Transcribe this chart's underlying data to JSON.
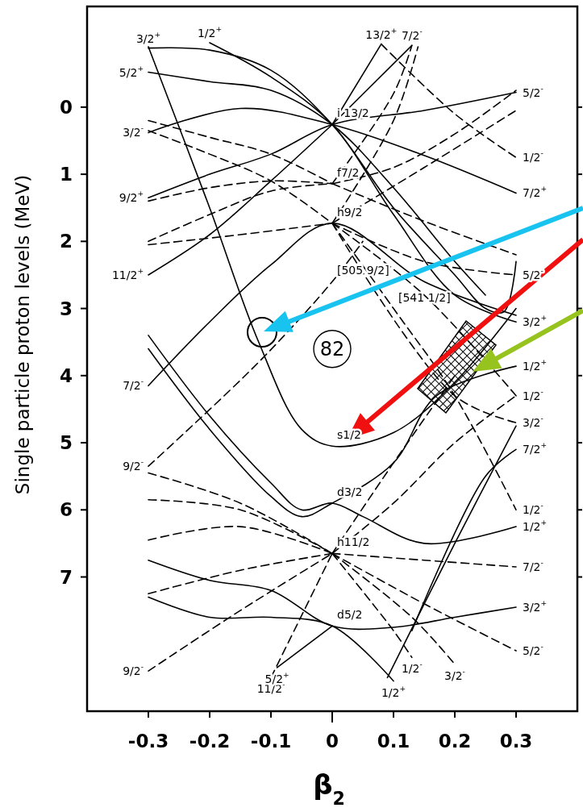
{
  "chart_data": {
    "type": "line",
    "xlabel": "β$_{2}$",
    "ylabel": "Single particle proton levels (MeV)",
    "xlim": [
      -0.4,
      0.4
    ],
    "ylim": [
      9,
      -1.5
    ],
    "xticks": [
      -0.3,
      -0.2,
      -0.1,
      0,
      0.1,
      0.2,
      0.3
    ],
    "yticks": [
      0,
      1,
      2,
      3,
      4,
      5,
      6,
      7
    ],
    "series": [
      {
        "color": "#000000",
        "line_style": "solid",
        "x": [
          -0.3,
          -0.2,
          -0.1,
          0,
          0.1,
          0.2,
          0.25,
          0.28,
          0.3
        ],
        "values": [
          -0.88,
          -0.85,
          -0.55,
          0.26,
          1.5,
          2.5,
          3.0,
          3.05,
          2.3
        ]
      },
      {
        "color": "#000000",
        "line_style": "solid",
        "x": [
          -0.2,
          -0.1,
          0,
          0.1,
          0.2,
          0.3
        ],
        "values": [
          -0.96,
          -0.45,
          0.26,
          1.6,
          2.8,
          3.2
        ]
      },
      {
        "color": "#000000",
        "line_style": "solid",
        "x": [
          -0.3,
          -0.2,
          -0.1,
          0,
          0.1,
          0.2,
          0.25
        ],
        "values": [
          -0.52,
          -0.38,
          -0.25,
          0.26,
          1.2,
          2.3,
          2.8
        ]
      },
      {
        "color": "#000000",
        "line_style": "solid",
        "x": [
          -0.3,
          -0.15,
          0,
          0.15,
          0.3
        ],
        "values": [
          0.38,
          0.02,
          0.26,
          0.72,
          1.28
        ]
      },
      {
        "color": "#000000",
        "line_style": "solid",
        "x": [
          -0.3,
          -0.2,
          -0.1,
          0,
          0.15,
          0.3
        ],
        "values": [
          1.35,
          1.0,
          0.7,
          0.26,
          0.05,
          -0.22
        ]
      },
      {
        "color": "#000000",
        "line_style": "solid",
        "x": [
          0,
          0.08
        ],
        "values": [
          0.26,
          -0.94
        ]
      },
      {
        "color": "#000000",
        "line_style": "solid",
        "x": [
          0,
          0.13
        ],
        "values": [
          0.26,
          -0.92
        ]
      },
      {
        "color": "#000000",
        "line_style": "solid",
        "x": [
          -0.3,
          -0.2,
          -0.1,
          0
        ],
        "values": [
          2.5,
          1.9,
          1.1,
          0.26
        ]
      },
      {
        "color": "#000000",
        "line_style": "solid",
        "x": [
          -0.3,
          -0.2,
          -0.12,
          -0.05,
          0,
          0.1,
          0.2,
          0.3
        ],
        "values": [
          -0.9,
          1.5,
          3.5,
          4.8,
          5.05,
          4.85,
          4.1,
          3.0
        ]
      },
      {
        "color": "#000000",
        "line_style": "solid",
        "x": [
          -0.3,
          -0.2,
          -0.1,
          0,
          0.15,
          0.3
        ],
        "values": [
          4.15,
          3.2,
          2.35,
          1.73,
          2.6,
          3.1
        ]
      },
      {
        "color": "#000000",
        "line_style": "solid",
        "x": [
          -0.3,
          -0.2,
          -0.1,
          -0.05,
          0,
          0.05,
          0.15,
          0.3
        ],
        "values": [
          3.4,
          4.6,
          5.6,
          6.0,
          5.9,
          6.1,
          6.5,
          6.25
        ]
      },
      {
        "color": "#000000",
        "line_style": "solid",
        "x": [
          -0.3,
          -0.2,
          -0.1,
          -0.05,
          0,
          0.1,
          0.17,
          0.3
        ],
        "values": [
          3.6,
          4.8,
          5.8,
          6.1,
          5.9,
          5.3,
          4.3,
          3.86
        ]
      },
      {
        "color": "#000000",
        "line_style": "solid",
        "x": [
          -0.3,
          -0.2,
          -0.1,
          0,
          0.1,
          0.2,
          0.3
        ],
        "values": [
          6.75,
          7.05,
          7.2,
          7.73,
          7.75,
          7.6,
          7.45
        ]
      },
      {
        "color": "#000000",
        "line_style": "solid",
        "x": [
          -0.3,
          -0.2,
          -0.1,
          0,
          0.1
        ],
        "values": [
          7.3,
          7.6,
          7.6,
          7.73,
          8.55
        ]
      },
      {
        "color": "#000000",
        "line_style": "solid",
        "x": [
          -0.09,
          0
        ],
        "values": [
          8.35,
          7.73
        ]
      },
      {
        "color": "#000000",
        "line_style": "solid",
        "x": [
          0.09,
          0.2,
          0.3
        ],
        "values": [
          8.5,
          6.5,
          4.75
        ]
      },
      {
        "color": "#000000",
        "line_style": "solid",
        "x": [
          0.13,
          0.25,
          0.3
        ],
        "values": [
          7.8,
          5.5,
          5.1
        ]
      },
      {
        "color": "#000000",
        "line_style": "dashed",
        "x": [
          -0.3,
          -0.2,
          -0.1,
          0
        ],
        "values": [
          0.2,
          0.45,
          0.7,
          1.14
        ]
      },
      {
        "color": "#000000",
        "line_style": "dashed",
        "x": [
          -0.3,
          -0.2,
          -0.1,
          0
        ],
        "values": [
          0.35,
          0.7,
          1.1,
          1.73
        ]
      },
      {
        "color": "#000000",
        "line_style": "dashed",
        "x": [
          -0.3,
          -0.2,
          -0.1,
          0
        ],
        "values": [
          1.4,
          1.2,
          1.1,
          1.14
        ]
      },
      {
        "color": "#000000",
        "line_style": "dashed",
        "x": [
          -0.3,
          -0.2,
          -0.1,
          0
        ],
        "values": [
          2.0,
          1.6,
          1.25,
          1.14
        ]
      },
      {
        "color": "#000000",
        "line_style": "dashed",
        "x": [
          -0.3,
          -0.15,
          0
        ],
        "values": [
          2.05,
          1.9,
          1.73
        ]
      },
      {
        "color": "#000000",
        "line_style": "dashed",
        "x": [
          0,
          0.1,
          0.13
        ],
        "values": [
          1.14,
          -0.2,
          -0.92
        ]
      },
      {
        "color": "#000000",
        "line_style": "dashed",
        "x": [
          0,
          0.1,
          0.14
        ],
        "values": [
          1.73,
          0.2,
          -0.9
        ]
      },
      {
        "color": "#000000",
        "line_style": "dashed",
        "x": [
          0.08,
          0.2,
          0.3
        ],
        "values": [
          -0.94,
          0.1,
          0.75
        ]
      },
      {
        "color": "#000000",
        "line_style": "dashed",
        "x": [
          0,
          0.1,
          0.2,
          0.3
        ],
        "values": [
          1.14,
          0.9,
          0.4,
          -0.25
        ]
      },
      {
        "color": "#000000",
        "line_style": "dashed",
        "x": [
          0,
          0.15,
          0.3
        ],
        "values": [
          1.73,
          0.9,
          0.05
        ]
      },
      {
        "color": "#000000",
        "line_style": "dashed",
        "x": [
          0,
          0.15,
          0.3
        ],
        "values": [
          1.73,
          2.3,
          2.5
        ]
      },
      {
        "color": "#000000",
        "line_style": "dashed",
        "x": [
          0,
          0.15,
          0.3
        ],
        "values": [
          1.14,
          1.7,
          2.2
        ]
      },
      {
        "color": "#000000",
        "line_style": "dashed",
        "x": [
          -0.3,
          -0.12,
          0,
          0.05
        ],
        "values": [
          5.35,
          3.8,
          2.6,
          2.0
        ]
      },
      {
        "color": "#000000",
        "line_style": "dashed",
        "x": [
          0,
          0.1,
          0.2,
          0.3
        ],
        "values": [
          1.73,
          3.0,
          4.3,
          6.0
        ]
      },
      {
        "color": "#000000",
        "line_style": "dashed",
        "x": [
          0,
          0.15,
          0.3
        ],
        "values": [
          1.73,
          2.8,
          4.3
        ]
      },
      {
        "color": "#000000",
        "line_style": "dashed",
        "x": [
          0,
          0.2,
          0.3
        ],
        "values": [
          1.73,
          4.3,
          4.7
        ]
      },
      {
        "color": "#000000",
        "line_style": "dashed",
        "x": [
          -0.3,
          -0.15,
          0
        ],
        "values": [
          5.45,
          5.9,
          6.65
        ]
      },
      {
        "color": "#000000",
        "line_style": "dashed",
        "x": [
          -0.3,
          -0.15,
          0
        ],
        "values": [
          5.85,
          6.0,
          6.65
        ]
      },
      {
        "color": "#000000",
        "line_style": "dashed",
        "x": [
          -0.3,
          -0.15,
          0
        ],
        "values": [
          6.45,
          6.25,
          6.65
        ]
      },
      {
        "color": "#000000",
        "line_style": "dashed",
        "x": [
          -0.3,
          -0.15,
          0
        ],
        "values": [
          7.25,
          6.9,
          6.65
        ]
      },
      {
        "color": "#000000",
        "line_style": "dashed",
        "x": [
          -0.3,
          -0.15,
          0
        ],
        "values": [
          8.4,
          7.5,
          6.65
        ]
      },
      {
        "color": "#000000",
        "line_style": "dashed",
        "x": [
          -0.1,
          0
        ],
        "values": [
          8.5,
          6.65
        ]
      },
      {
        "color": "#000000",
        "line_style": "dashed",
        "x": [
          0,
          0.15,
          0.3
        ],
        "values": [
          6.65,
          6.75,
          6.85
        ]
      },
      {
        "color": "#000000",
        "line_style": "dashed",
        "x": [
          0,
          0.1,
          0.13
        ],
        "values": [
          6.65,
          7.8,
          8.2
        ]
      },
      {
        "color": "#000000",
        "line_style": "dashed",
        "x": [
          0,
          0.13,
          0.2
        ],
        "values": [
          6.65,
          7.6,
          8.3
        ]
      },
      {
        "color": "#000000",
        "line_style": "dashed",
        "x": [
          0,
          0.15,
          0.3
        ],
        "values": [
          6.65,
          7.4,
          8.1
        ]
      },
      {
        "color": "#000000",
        "line_style": "dashed",
        "x": [
          0,
          0.1,
          0.2,
          0.3
        ],
        "values": [
          6.65,
          5.9,
          5.0,
          4.3
        ]
      },
      {
        "color": "#000000",
        "line_style": "dashed",
        "x": [
          0,
          0.1,
          0.2
        ],
        "values": [
          6.65,
          5.3,
          4.0
        ]
      }
    ],
    "annotations": [
      {
        "text": "3/2$^{+}$",
        "x": -0.3,
        "y": -0.88
      },
      {
        "text": "1/2$^{+}$",
        "x": -0.2,
        "y": -0.96
      },
      {
        "text": "5/2$^{+}$",
        "x": -0.3,
        "y": -0.52
      },
      {
        "text": "3/2$^{-}$",
        "x": -0.3,
        "y": 0.38
      },
      {
        "text": "9/2$^{+}$",
        "x": -0.3,
        "y": 1.35
      },
      {
        "text": "11/2$^{+}$",
        "x": -0.3,
        "y": 2.5
      },
      {
        "text": "7/2$^{-}$",
        "x": -0.3,
        "y": 4.15
      },
      {
        "text": "9/2$^{-}$",
        "x": -0.3,
        "y": 5.35
      },
      {
        "text": "9/2$^{-}$",
        "x": -0.3,
        "y": 8.4
      },
      {
        "text": "11/2$^{-}$",
        "x": -0.1,
        "y": 8.5
      },
      {
        "text": "5/2$^{+}$",
        "x": -0.09,
        "y": 8.35
      },
      {
        "text": "13/2$^{+}$",
        "x": 0.08,
        "y": -0.94
      },
      {
        "text": "7/2$^{-}$",
        "x": 0.13,
        "y": -0.92
      },
      {
        "text": "i 13/2",
        "x": 0,
        "y": 0.26
      },
      {
        "text": "f7/2",
        "x": 0,
        "y": 1.14
      },
      {
        "text": "h9/2",
        "x": 0,
        "y": 1.73
      },
      {
        "text": "5/2$^{-}$",
        "x": 0.3,
        "y": -0.22
      },
      {
        "text": "1/2$^{-}$",
        "x": 0.3,
        "y": 0.75
      },
      {
        "text": "7/2$^{+}$",
        "x": 0.3,
        "y": 1.28
      },
      {
        "text": "5/2$^{-}$",
        "x": 0.3,
        "y": 2.5
      },
      {
        "text": "3/2$^{+}$",
        "x": 0.3,
        "y": 3.2
      },
      {
        "text": "1/2$^{+}$",
        "x": 0.3,
        "y": 3.86
      },
      {
        "text": "1/2$^{-}$",
        "x": 0.3,
        "y": 4.3
      },
      {
        "text": "3/2$^{-}$",
        "x": 0.3,
        "y": 4.7
      },
      {
        "text": "7/2$^{+}$",
        "x": 0.3,
        "y": 5.1
      },
      {
        "text": "1/2$^{-}$",
        "x": 0.3,
        "y": 6.0
      },
      {
        "text": "1/2$^{+}$",
        "x": 0.3,
        "y": 6.25
      },
      {
        "text": "7/2$^{-}$",
        "x": 0.3,
        "y": 6.85
      },
      {
        "text": "3/2$^{+}$",
        "x": 0.3,
        "y": 7.45
      },
      {
        "text": "5/2$^{-}$",
        "x": 0.3,
        "y": 8.1
      },
      {
        "text": "1/2$^{-}$",
        "x": 0.13,
        "y": 8.2
      },
      {
        "text": "3/2$^{-}$",
        "x": 0.2,
        "y": 8.3
      },
      {
        "text": "1/2$^{+}$",
        "x": 0.1,
        "y": 8.55
      },
      {
        "text": "s1/2",
        "x": 0,
        "y": 5.05
      },
      {
        "text": "d3/2",
        "x": 0,
        "y": 5.9
      },
      {
        "text": "h11/2",
        "x": 0,
        "y": 6.65
      },
      {
        "text": "d5/2",
        "x": 0,
        "y": 7.73
      },
      {
        "text": "[505 9/2]",
        "x": 0,
        "y": 2.6
      },
      {
        "text": "[541 1/2]",
        "x": 0.1,
        "y": 3.0
      },
      "82"
    ]
  }
}
